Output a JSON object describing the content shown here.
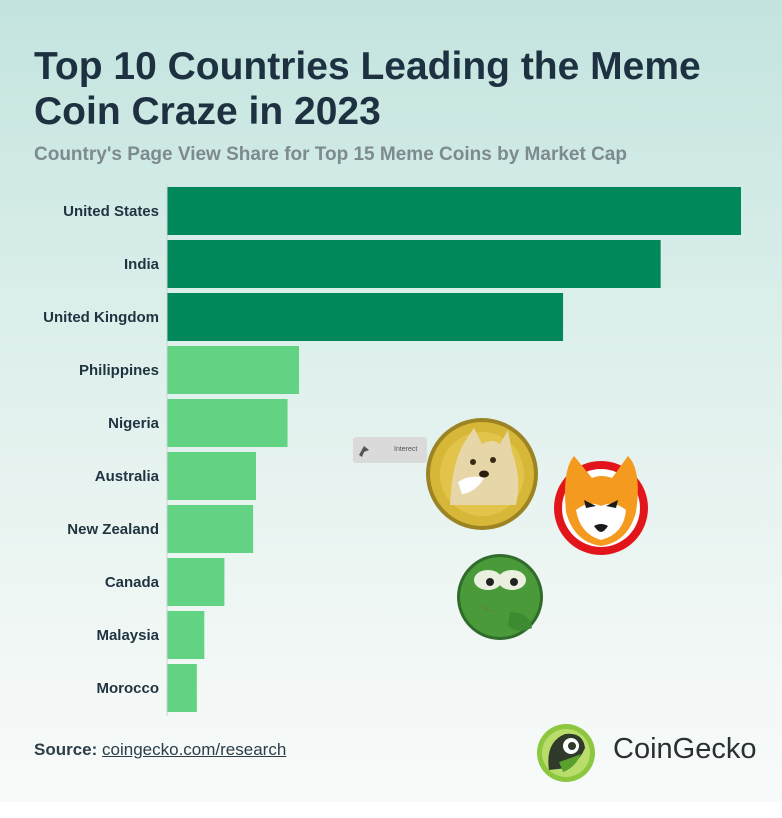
{
  "header": {
    "title": "Top 10 Countries Leading the Meme Coin Craze in 2023",
    "subtitle": "Country's Page View Share for Top 15 Meme Coins by Market Cap"
  },
  "chart_data": {
    "type": "bar",
    "orientation": "horizontal",
    "title": "Top 10 Countries Leading the Meme Coin Craze in 2023",
    "subtitle": "Country's Page View Share for Top 15 Meme Coins by Market Cap",
    "categories": [
      "United States",
      "India",
      "United Kingdom",
      "Philippines",
      "Nigeria",
      "Australia",
      "New Zealand",
      "Canada",
      "Malaysia",
      "Morocco"
    ],
    "values": [
      100,
      86,
      69,
      23,
      21,
      15.5,
      15,
      10,
      6.5,
      5.2
    ],
    "xlim": [
      0,
      100
    ],
    "grid": false,
    "colors": {
      "top": "#00875a",
      "rest": "#62d283"
    },
    "highlight_count": 3
  },
  "source": {
    "label": "Source:",
    "link": "coingecko.com/research"
  },
  "brand": {
    "name": "CoinGecko"
  },
  "tooltip": {
    "text": "Interect"
  }
}
